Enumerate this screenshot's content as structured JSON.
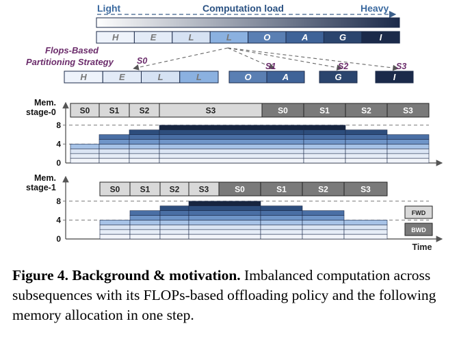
{
  "header": {
    "light": "Light",
    "load": "Computation load",
    "heavy": "Heavy",
    "gradient_start": "#ffffff",
    "gradient_end": "#1b2a4a"
  },
  "sequence": {
    "tokens": [
      {
        "text": "H",
        "color": "#eef3fb"
      },
      {
        "text": "E",
        "color": "#e3ebf7"
      },
      {
        "text": "L",
        "color": "#d6e2f3"
      },
      {
        "text": "L",
        "color": "#8bb1e0"
      },
      {
        "text": "O",
        "color": "#5a7fb3"
      },
      {
        "text": "A",
        "color": "#3f6398"
      },
      {
        "text": "G",
        "color": "#2b456e"
      },
      {
        "text": "I",
        "color": "#1b2a4a"
      }
    ]
  },
  "strategy": {
    "label_line1": "Flops-Based",
    "label_line2": "Partitioning Strategy",
    "color": "#6b2c6b",
    "stages": [
      {
        "name": "S0",
        "tokens": [
          0,
          1,
          2,
          3
        ]
      },
      {
        "name": "S1",
        "tokens": [
          4,
          5
        ]
      },
      {
        "name": "S2",
        "tokens": [
          6
        ]
      },
      {
        "name": "S3",
        "tokens": [
          7
        ]
      }
    ]
  },
  "timeline": {
    "time_label": "Time",
    "tick_values": [
      "0",
      "4",
      "8"
    ],
    "light_task_color": "#d9d9d9",
    "dark_task_color": "#7a7a7a",
    "stage0": {
      "label_line1": "Mem.",
      "label_line2": "stage-0",
      "tasks": [
        {
          "text": "S0",
          "kind": "light"
        },
        {
          "text": "S1",
          "kind": "light"
        },
        {
          "text": "S2",
          "kind": "light"
        },
        {
          "text": "S3",
          "kind": "light"
        },
        {
          "text": "S0",
          "kind": "dark"
        },
        {
          "text": "S1",
          "kind": "dark"
        },
        {
          "text": "S2",
          "kind": "dark"
        },
        {
          "text": "S3",
          "kind": "dark"
        }
      ],
      "memory_levels": [
        4,
        6,
        7,
        8,
        8,
        7,
        6,
        4
      ]
    },
    "stage1": {
      "label_line1": "Mem.",
      "label_line2": "stage-1",
      "tasks": [
        {
          "text": "S0",
          "kind": "light"
        },
        {
          "text": "S1",
          "kind": "light"
        },
        {
          "text": "S2",
          "kind": "light"
        },
        {
          "text": "S3",
          "kind": "light"
        },
        {
          "text": "S0",
          "kind": "dark"
        },
        {
          "text": "S1",
          "kind": "dark"
        },
        {
          "text": "S2",
          "kind": "dark"
        },
        {
          "text": "S3",
          "kind": "dark"
        }
      ],
      "memory_levels": [
        4,
        6,
        7,
        8,
        7,
        6,
        4
      ]
    },
    "legend": {
      "fwd": "FWD",
      "bwd": "BWD"
    },
    "memory_layer_colors": [
      "#f2f5fa",
      "#e6edf7",
      "#dae4f3",
      "#a6c2e6",
      "#6f95c8",
      "#4a6fa5",
      "#2d4d7c",
      "#172540"
    ]
  },
  "caption": {
    "head": "Figure 4. Background & motivation.",
    "body": " Imbalanced computation across subsequences with its FLOPs-based offloading policy and the following memory allocation in one step."
  }
}
